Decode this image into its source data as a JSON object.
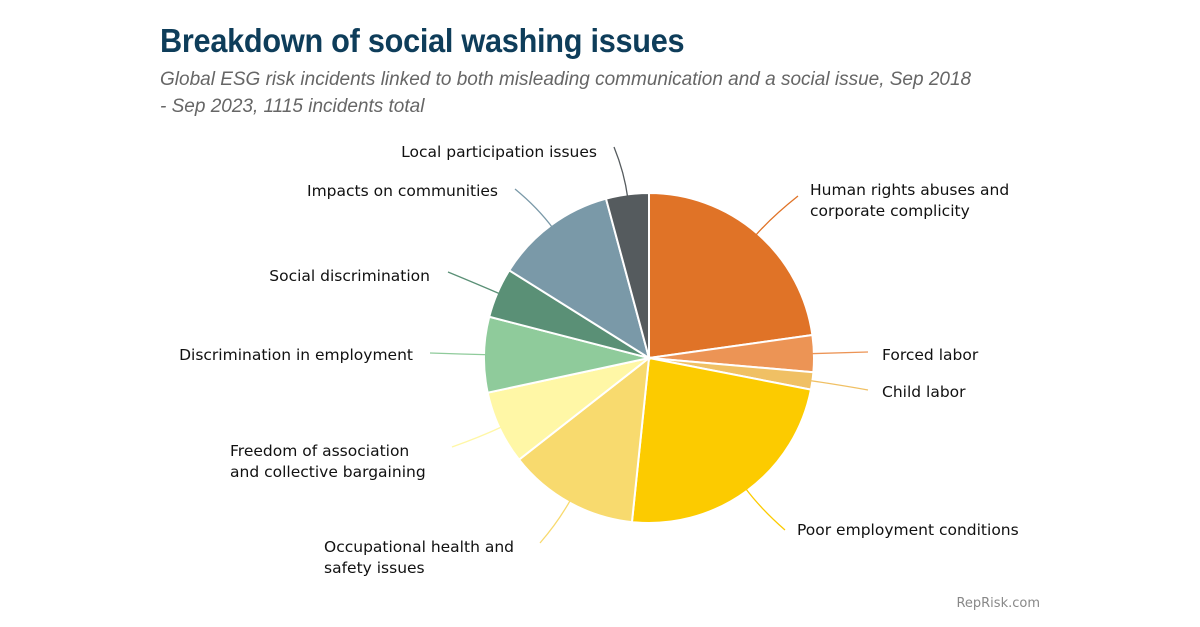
{
  "chart_data": {
    "type": "pie",
    "title": "Breakdown of social washing issues",
    "subtitle": "Global ESG risk incidents linked to both misleading communication and a social issue, Sep 2018 - Sep 2023, 1115 incidents total",
    "unit": "percent share (estimated)",
    "start_angle": "12 o'clock, clockwise",
    "slices": [
      {
        "label": "Human rights abuses and corporate complicity",
        "value": 22.8,
        "color": "#e07327"
      },
      {
        "label": "Forced labor",
        "value": 3.6,
        "color": "#ec9455"
      },
      {
        "label": "Child labor",
        "value": 1.7,
        "color": "#f0c064"
      },
      {
        "label": "Poor employment conditions",
        "value": 23.6,
        "color": "#fccb00"
      },
      {
        "label": "Occupational health and safety issues",
        "value": 12.8,
        "color": "#f8da6e"
      },
      {
        "label": "Freedom of association and collective bargaining",
        "value": 7.2,
        "color": "#fff7a6"
      },
      {
        "label": "Discrimination in employment",
        "value": 7.4,
        "color": "#8fcb9b"
      },
      {
        "label": "Social discrimination",
        "value": 4.9,
        "color": "#5a9076"
      },
      {
        "label": "Impacts on communities",
        "value": 11.9,
        "color": "#7a99a8"
      },
      {
        "label": "Local participation issues",
        "value": 4.2,
        "color": "#555b5e"
      }
    ]
  },
  "display_labels": [
    "Human rights abuses and\ncorporate complicity",
    "Forced labor",
    "Child labor",
    "Poor employment conditions",
    "Occupational health and\nsafety issues",
    "Freedom of association\nand collective bargaining",
    "Discrimination in employment",
    "Social discrimination",
    "Impacts on communities",
    "Local participation issues"
  ],
  "credit": "RepRisk.com"
}
